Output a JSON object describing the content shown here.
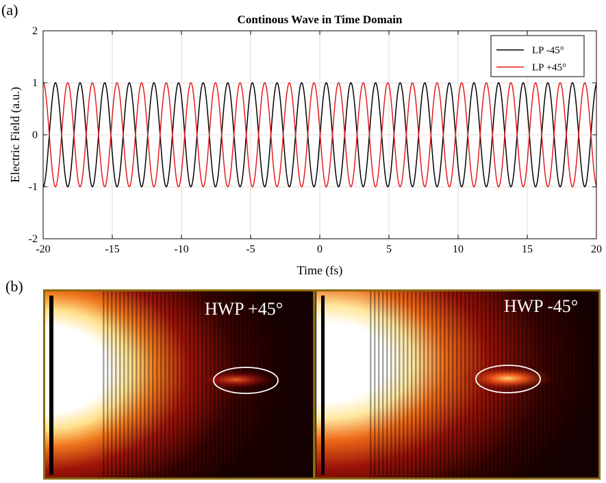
{
  "panel_a_label": "(a)",
  "panel_b_label": "(b)",
  "chart_data": {
    "type": "line",
    "title": "Continous Wave in Time Domain",
    "xlabel": "Time (fs)",
    "ylabel": "Electric Field (a.u.)",
    "xlim": [
      -20,
      20
    ],
    "ylim": [
      -2,
      2
    ],
    "xticks": [
      -20,
      -15,
      -10,
      -5,
      0,
      5,
      10,
      15,
      20
    ],
    "yticks": [
      -2,
      -1,
      0,
      1,
      2
    ],
    "grid": true,
    "legend_position": "top-right",
    "series": [
      {
        "name": "LP -45°",
        "color": "#000000",
        "function": "-sin",
        "amplitude": 1,
        "period_fs": 1.78,
        "x_start": -20,
        "x_end": 20
      },
      {
        "name": "LP +45°",
        "color": "#e41a1c",
        "function": "sin",
        "amplitude": 1,
        "period_fs": 1.78,
        "x_start": -20,
        "x_end": 20
      }
    ]
  },
  "images": {
    "frame_color": "#8a6a10",
    "left_label": "HWP +45°",
    "right_label": "HWP -45°"
  }
}
